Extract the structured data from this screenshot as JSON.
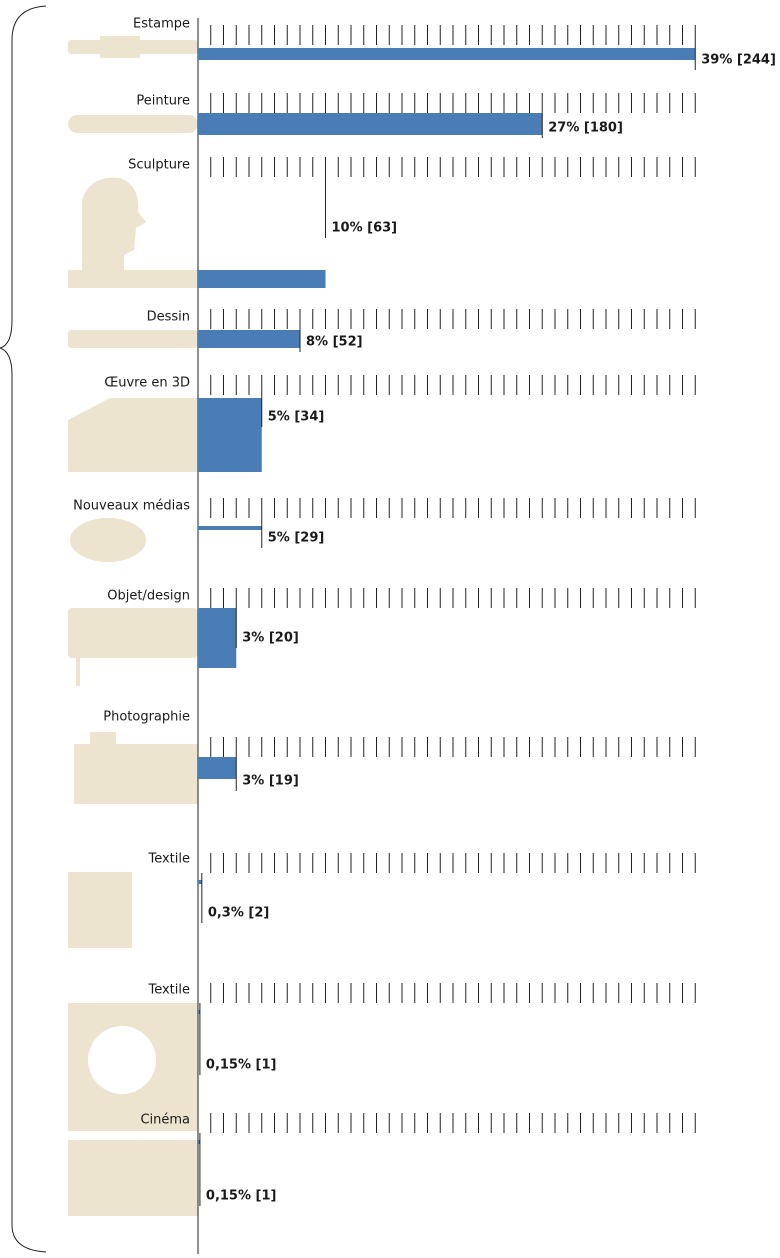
{
  "chart_data": {
    "type": "bar",
    "categories": [
      "Estampe",
      "Peinture",
      "Sculpture",
      "Dessin",
      "Œuvre en 3D",
      "Nouveaux médias",
      "Objet/design",
      "Photographie",
      "Textile",
      "Textile",
      "Cinéma"
    ],
    "values": [
      39,
      27,
      10,
      8,
      5,
      5,
      3,
      3,
      0.3,
      0.15,
      0.15
    ],
    "value_labels": [
      "39% [244]",
      "27% [180]",
      "10% [63]",
      "8% [52]",
      "5% [34]",
      "5% [29]",
      "3% [20]",
      "3% [19]",
      "0,3% [2]",
      "0,15% [1]",
      "0,15% [1]"
    ],
    "color": "#4a7db5",
    "xlim": [
      0,
      40
    ],
    "xticks": [
      1,
      2,
      3,
      4,
      5,
      6,
      7,
      8,
      9,
      10,
      11,
      12,
      13,
      14,
      15,
      16,
      17,
      18,
      19,
      20,
      21,
      22,
      23,
      24,
      25,
      26,
      27,
      28,
      29,
      30,
      31,
      32,
      33,
      34,
      35,
      36,
      37,
      38,
      39
    ]
  }
}
